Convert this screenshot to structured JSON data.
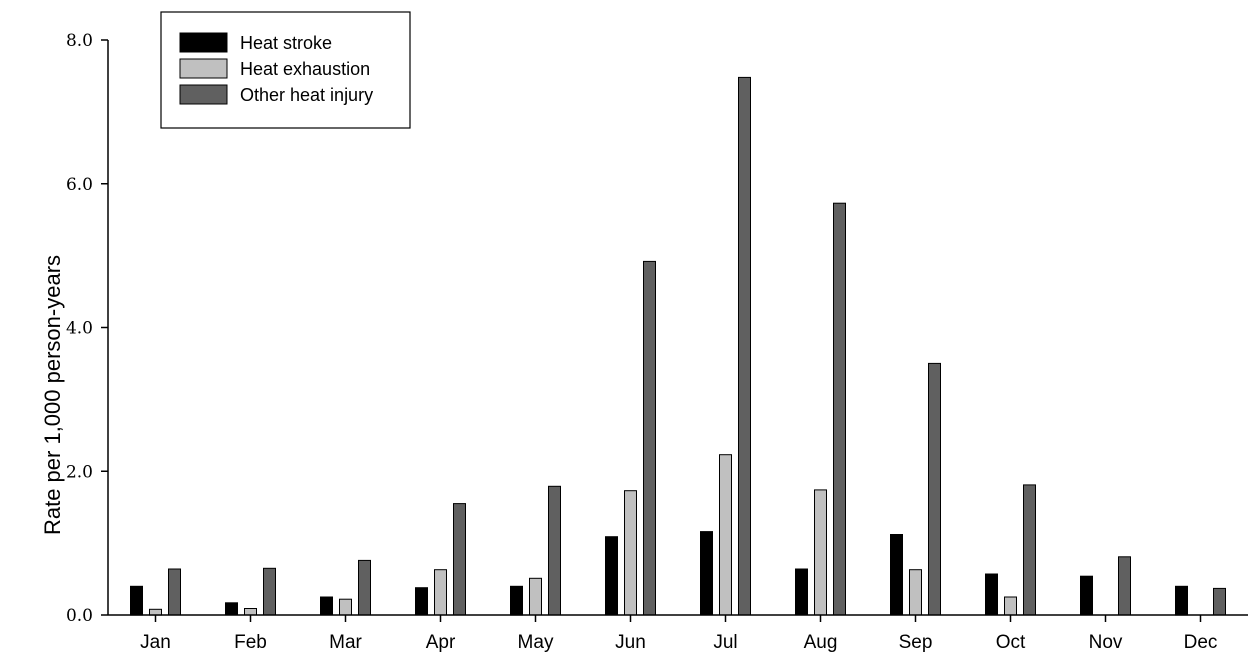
{
  "chart_data": {
    "type": "bar",
    "ylabel": "Rate per 1,000 person-years",
    "xlabel": "",
    "ylim": [
      0,
      8
    ],
    "yticks": [
      "0.0",
      "2.0",
      "4.0",
      "6.0",
      "8.0"
    ],
    "ytick_values": [
      0,
      2,
      4,
      6,
      8
    ],
    "categories": [
      "Jan",
      "Feb",
      "Mar",
      "Apr",
      "May",
      "Jun",
      "Jul",
      "Aug",
      "Sep",
      "Oct",
      "Nov",
      "Dec"
    ],
    "grid": false,
    "legend_position": "top-left",
    "series": [
      {
        "name": "Heat stroke",
        "color": "#000000",
        "values": [
          0.4,
          0.17,
          0.25,
          0.38,
          0.4,
          1.09,
          1.16,
          0.64,
          1.12,
          0.57,
          0.54,
          0.4
        ]
      },
      {
        "name": "Heat exhaustion",
        "color": "#c0c0c0",
        "values": [
          0.08,
          0.09,
          0.22,
          0.63,
          0.51,
          1.73,
          2.23,
          1.74,
          0.63,
          0.25,
          0.0,
          0.0
        ]
      },
      {
        "name": "Other heat injury",
        "color": "#606060",
        "values": [
          0.64,
          0.65,
          0.76,
          1.55,
          1.79,
          4.92,
          7.48,
          5.73,
          3.5,
          1.81,
          0.81,
          0.37
        ]
      }
    ]
  }
}
